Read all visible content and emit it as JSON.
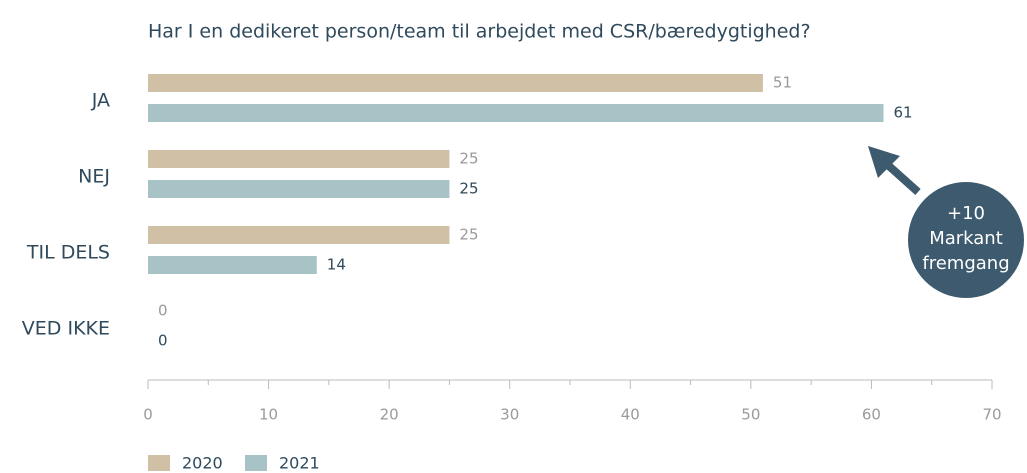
{
  "chart_data": {
    "type": "barh",
    "title": "Har I en dedikeret person/team til arbejdet med CSR/bæredygtighed?",
    "categories": [
      "JA",
      "NEJ",
      "TIL DELS",
      "VED IKKE"
    ],
    "series": [
      {
        "name": "2020",
        "color": "#cfc0a6",
        "label_color": "#9a9a9a",
        "values": [
          51,
          25,
          25,
          0
        ]
      },
      {
        "name": "2021",
        "color": "#a8c3c5",
        "label_color": "#2f4a5c",
        "values": [
          61,
          25,
          14,
          0
        ]
      }
    ],
    "xlim": [
      0,
      70
    ],
    "xticks": [
      0,
      10,
      20,
      30,
      40,
      50,
      60,
      70
    ],
    "minor_xticks": [
      5,
      15,
      25,
      35,
      45,
      55,
      65
    ],
    "annotation": {
      "lines": [
        "+10",
        "Markant",
        "fremgang"
      ],
      "color": "#3d5a6e"
    },
    "legend": "bottom-left"
  }
}
